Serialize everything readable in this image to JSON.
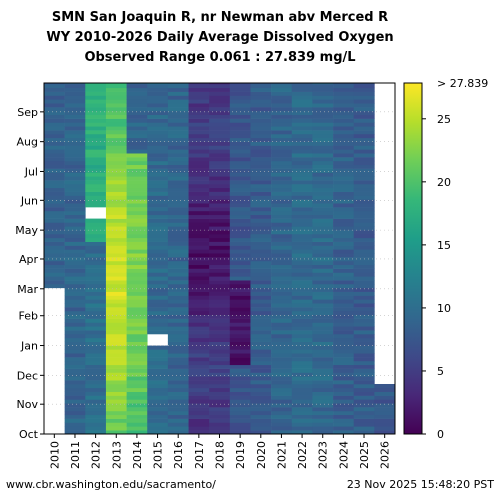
{
  "chart_data": {
    "type": "heatmap",
    "title_lines": [
      "SMN San Joaquin R, nr Newman abv Merced R",
      "WY 2010-2026 Daily Average Dissolved Oxygen",
      "Observed Range 0.061 : 27.839 mg/L"
    ],
    "xlabel": "",
    "ylabel": "",
    "x_categories": [
      "2010",
      "2011",
      "2012",
      "2013",
      "2014",
      "2015",
      "2016",
      "2017",
      "2018",
      "2019",
      "2020",
      "2021",
      "2022",
      "2023",
      "2024",
      "2025",
      "2026"
    ],
    "y_tick_labels": [
      "Oct",
      "Nov",
      "Dec",
      "Jan",
      "Feb",
      "Mar",
      "Apr",
      "May",
      "Jun",
      "Jul",
      "Aug",
      "Sep"
    ],
    "colorbar": {
      "ticks": [
        0,
        5,
        10,
        15,
        20,
        25
      ],
      "max_label": "> 27.839",
      "range": [
        0,
        27.839
      ],
      "colormap": "viridis"
    },
    "approx_median_by_year_mg_per_L": [
      8.5,
      9.0,
      17.5,
      21.0,
      19.5,
      9.5,
      9.0,
      3.0,
      3.5,
      6.0,
      8.0,
      9.0,
      9.5,
      9.5,
      8.5,
      8.0,
      7.5
    ],
    "data_coverage": {
      "2010": "Mar-Sep",
      "2026": "Oct-Nov",
      "2012": "gap mid-May",
      "2015": "gap early Jan"
    }
  },
  "footer": {
    "source": "www.cbr.washington.edu/sacramento/",
    "timestamp": "23 Nov 2025 15:48:20 PST"
  }
}
